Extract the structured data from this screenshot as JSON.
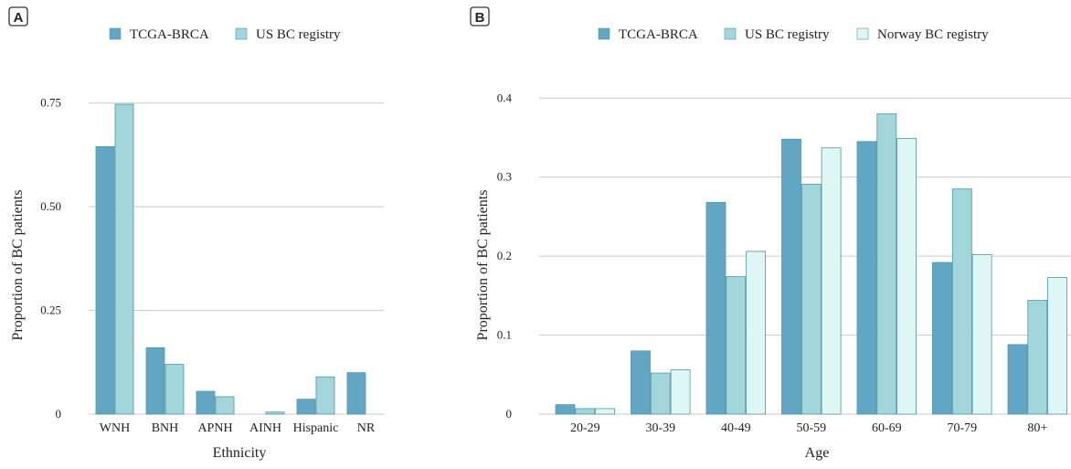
{
  "colors": {
    "tcga": "#62a6c4",
    "us": "#a2d6da",
    "norway": "#def7f4"
  },
  "panels": {
    "a": "A",
    "b": "B"
  },
  "chart_data": [
    {
      "type": "bar",
      "panel": "A",
      "xlabel": "Ethnicity",
      "ylabel": "Proportion of BC patients",
      "ylim": [
        0,
        0.8
      ],
      "yticks": [
        0,
        0.25,
        0.5,
        0.75
      ],
      "ytick_labels": [
        "0",
        "0.25",
        "0.50",
        "0.75"
      ],
      "grid": true,
      "legend_position": "top",
      "categories": [
        "WNH",
        "BNH",
        "APNH",
        "AINH",
        "Hispanic",
        "NR"
      ],
      "series": [
        {
          "name": "TCGA-BRCA",
          "color_key": "tcga",
          "values": [
            0.645,
            0.16,
            0.055,
            0,
            0.036,
            0.1
          ]
        },
        {
          "name": "US BC registry",
          "color_key": "us",
          "values": [
            0.747,
            0.12,
            0.042,
            0.005,
            0.09,
            0
          ]
        }
      ]
    },
    {
      "type": "bar",
      "panel": "B",
      "xlabel": "Age",
      "ylabel": "Proportion of BC patients",
      "ylim": [
        0,
        0.42
      ],
      "yticks": [
        0,
        0.1,
        0.2,
        0.3,
        0.4
      ],
      "ytick_labels": [
        "0",
        "0.1",
        "0.2",
        "0.3",
        "0.4"
      ],
      "grid": true,
      "legend_position": "top",
      "categories": [
        "20-29",
        "30-39",
        "40-49",
        "50-59",
        "60-69",
        "70-79",
        "80+"
      ],
      "series": [
        {
          "name": "TCGA-BRCA",
          "color_key": "tcga",
          "values": [
            0.012,
            0.08,
            0.268,
            0.348,
            0.345,
            0.192,
            0.088
          ]
        },
        {
          "name": "US BC registry",
          "color_key": "us",
          "values": [
            0.007,
            0.052,
            0.174,
            0.291,
            0.38,
            0.285,
            0.144
          ]
        },
        {
          "name": "Norway BC registry",
          "color_key": "norway",
          "values": [
            0.007,
            0.056,
            0.206,
            0.337,
            0.349,
            0.202,
            0.173
          ]
        }
      ]
    }
  ]
}
